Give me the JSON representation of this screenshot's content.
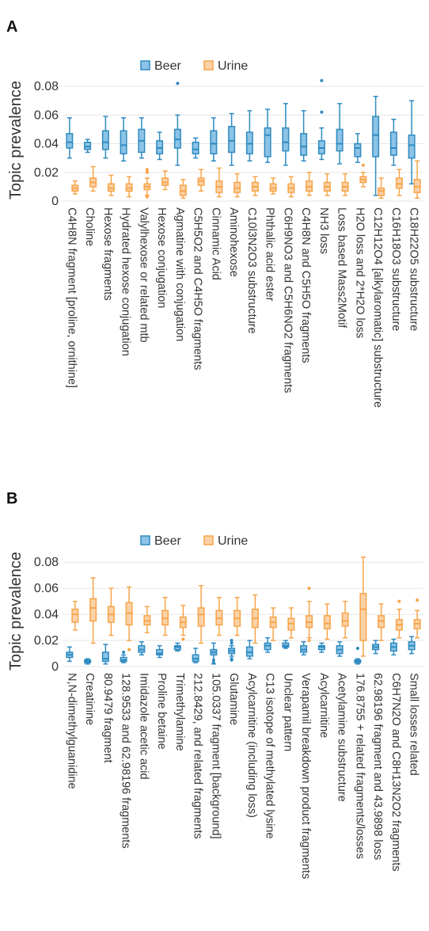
{
  "colors": {
    "beer": "#2e8bc0",
    "beer_fill": "#8cc3e6",
    "urine": "#f7a44a",
    "urine_fill": "#fbd2a6"
  },
  "chart_data": [
    {
      "panel": "A",
      "type": "box",
      "ylabel": "Topic prevalence",
      "ylim": [
        0,
        0.085
      ],
      "yticks": [
        0,
        0.02,
        0.04,
        0.06,
        0.08
      ],
      "ytick_labels": [
        "0",
        "0.02",
        "0.04",
        "0.06",
        "0.08"
      ],
      "grid": true,
      "legend": [
        "Beer",
        "Urine"
      ],
      "legend_placement": "top-center",
      "categories": [
        "C4H8N fragment [proline, ornithine]",
        "Choline",
        "Hexose fragments",
        "Hydrated hexose conjugation",
        "Valylhexose or related mtb",
        "Hexose conjugation",
        "Agmatine with conjugation",
        "C5H5O2 and C4H5O fragments",
        "Cinnamic Acid",
        "Aminohexose",
        "C10l3N2O3 substructure",
        "Phthalic acid ester",
        "C6H9NO3 and C5H6NO2 fragments",
        "C4H8N and C5H5O fragments",
        "NH3 loss",
        "Loss based Mass2Motif",
        "H2O loss and 2*H2O loss",
        "C12H12O4 [alkylaromatic] substructure",
        "C16H18O3 substructure",
        "C18H22O5 substructure"
      ],
      "series": [
        {
          "name": "Beer",
          "boxes": [
            {
              "min": 0.03,
              "q1": 0.037,
              "median": 0.041,
              "q3": 0.047,
              "max": 0.058,
              "outliers": []
            },
            {
              "min": 0.034,
              "q1": 0.036,
              "median": 0.038,
              "q3": 0.041,
              "max": 0.043,
              "outliers": []
            },
            {
              "min": 0.03,
              "q1": 0.036,
              "median": 0.041,
              "q3": 0.049,
              "max": 0.059,
              "outliers": []
            },
            {
              "min": 0.028,
              "q1": 0.033,
              "median": 0.039,
              "q3": 0.049,
              "max": 0.058,
              "outliers": []
            },
            {
              "min": 0.03,
              "q1": 0.034,
              "median": 0.042,
              "q3": 0.05,
              "max": 0.058,
              "outliers": []
            },
            {
              "min": 0.029,
              "q1": 0.033,
              "median": 0.037,
              "q3": 0.042,
              "max": 0.048,
              "outliers": []
            },
            {
              "min": 0.025,
              "q1": 0.037,
              "median": 0.043,
              "q3": 0.05,
              "max": 0.06,
              "outliers": [
                0.082
              ]
            },
            {
              "min": 0.03,
              "q1": 0.033,
              "median": 0.036,
              "q3": 0.041,
              "max": 0.044,
              "outliers": []
            },
            {
              "min": 0.028,
              "q1": 0.033,
              "median": 0.04,
              "q3": 0.049,
              "max": 0.058,
              "outliers": []
            },
            {
              "min": 0.025,
              "q1": 0.034,
              "median": 0.042,
              "q3": 0.052,
              "max": 0.061,
              "outliers": []
            },
            {
              "min": 0.028,
              "q1": 0.033,
              "median": 0.04,
              "q3": 0.048,
              "max": 0.063,
              "outliers": []
            },
            {
              "min": 0.027,
              "q1": 0.031,
              "median": 0.046,
              "q3": 0.051,
              "max": 0.064,
              "outliers": []
            },
            {
              "min": 0.025,
              "q1": 0.035,
              "median": 0.041,
              "q3": 0.051,
              "max": 0.068,
              "outliers": []
            },
            {
              "min": 0.028,
              "q1": 0.032,
              "median": 0.038,
              "q3": 0.047,
              "max": 0.063,
              "outliers": []
            },
            {
              "min": 0.029,
              "q1": 0.033,
              "median": 0.037,
              "q3": 0.042,
              "max": 0.051,
              "outliers": [
                0.062,
                0.084
              ]
            },
            {
              "min": 0.026,
              "q1": 0.035,
              "median": 0.04,
              "q3": 0.05,
              "max": 0.068,
              "outliers": []
            },
            {
              "min": 0.027,
              "q1": 0.031,
              "median": 0.037,
              "q3": 0.04,
              "max": 0.047,
              "outliers": []
            },
            {
              "min": 0.004,
              "q1": 0.031,
              "median": 0.046,
              "q3": 0.059,
              "max": 0.073,
              "outliers": []
            },
            {
              "min": 0.025,
              "q1": 0.032,
              "median": 0.037,
              "q3": 0.048,
              "max": 0.057,
              "outliers": []
            },
            {
              "min": 0.012,
              "q1": 0.03,
              "median": 0.039,
              "q3": 0.046,
              "max": 0.07,
              "outliers": []
            }
          ]
        },
        {
          "name": "Urine",
          "boxes": [
            {
              "min": 0.005,
              "q1": 0.007,
              "median": 0.009,
              "q3": 0.011,
              "max": 0.014,
              "outliers": []
            },
            {
              "min": 0.007,
              "q1": 0.01,
              "median": 0.013,
              "q3": 0.016,
              "max": 0.024,
              "outliers": []
            },
            {
              "min": 0.004,
              "q1": 0.007,
              "median": 0.009,
              "q3": 0.012,
              "max": 0.018,
              "outliers": []
            },
            {
              "min": 0.003,
              "q1": 0.007,
              "median": 0.009,
              "q3": 0.012,
              "max": 0.017,
              "outliers": []
            },
            {
              "min": 0.004,
              "q1": 0.008,
              "median": 0.01,
              "q3": 0.012,
              "max": 0.016,
              "outliers": [
                0.003,
                0.02,
                0.022
              ]
            },
            {
              "min": 0.008,
              "q1": 0.011,
              "median": 0.013,
              "q3": 0.016,
              "max": 0.021,
              "outliers": []
            },
            {
              "min": 0.002,
              "q1": 0.004,
              "median": 0.007,
              "q3": 0.011,
              "max": 0.015,
              "outliers": []
            },
            {
              "min": 0.007,
              "q1": 0.011,
              "median": 0.014,
              "q3": 0.016,
              "max": 0.022,
              "outliers": []
            },
            {
              "min": 0.003,
              "q1": 0.006,
              "median": 0.01,
              "q3": 0.014,
              "max": 0.023,
              "outliers": []
            },
            {
              "min": 0.003,
              "q1": 0.006,
              "median": 0.009,
              "q3": 0.013,
              "max": 0.019,
              "outliers": []
            },
            {
              "min": 0.004,
              "q1": 0.007,
              "median": 0.01,
              "q3": 0.013,
              "max": 0.017,
              "outliers": []
            },
            {
              "min": 0.005,
              "q1": 0.007,
              "median": 0.009,
              "q3": 0.012,
              "max": 0.016,
              "outliers": []
            },
            {
              "min": 0.003,
              "q1": 0.006,
              "median": 0.009,
              "q3": 0.012,
              "max": 0.017,
              "outliers": []
            },
            {
              "min": 0.004,
              "q1": 0.007,
              "median": 0.01,
              "q3": 0.014,
              "max": 0.02,
              "outliers": []
            },
            {
              "min": 0.004,
              "q1": 0.007,
              "median": 0.01,
              "q3": 0.013,
              "max": 0.019,
              "outliers": []
            },
            {
              "min": 0.004,
              "q1": 0.007,
              "median": 0.01,
              "q3": 0.013,
              "max": 0.019,
              "outliers": []
            },
            {
              "min": 0.01,
              "q1": 0.013,
              "median": 0.015,
              "q3": 0.017,
              "max": 0.02,
              "outliers": [
                0.025
              ]
            },
            {
              "min": 0.002,
              "q1": 0.004,
              "median": 0.007,
              "q3": 0.009,
              "max": 0.016,
              "outliers": []
            },
            {
              "min": 0.004,
              "q1": 0.009,
              "median": 0.012,
              "q3": 0.016,
              "max": 0.022,
              "outliers": []
            },
            {
              "min": 0.002,
              "q1": 0.006,
              "median": 0.01,
              "q3": 0.015,
              "max": 0.028,
              "outliers": []
            }
          ]
        }
      ]
    },
    {
      "panel": "B",
      "type": "box",
      "ylabel": "Topic prevalence",
      "ylim": [
        0,
        0.085
      ],
      "yticks": [
        0,
        0.02,
        0.04,
        0.06,
        0.08
      ],
      "ytick_labels": [
        "0",
        "0.02",
        "0.04",
        "0.06",
        "0.08"
      ],
      "grid": true,
      "legend": [
        "Beer",
        "Urine"
      ],
      "legend_placement": "top-center",
      "categories": [
        "N,N-dimethylguanidine",
        "Creatinine",
        "80.9479 fragment",
        "128.9533 and 62.98196 fragments",
        "Imidazole acetic acid",
        "Proline betaine",
        "Trimethylamine",
        "212.8429, and related fragments",
        "105.0337 fragment [background]",
        "Glutamine",
        "Acylcarnitine (including loss)",
        "C13 isotope of methylated lysine",
        "Unclear pattern",
        "Verapamil breakdown product fragments",
        "Acylcarnitine",
        "Acetylamine substructure",
        "176.8755 + related fragments/losses",
        "62.98196 fragment and 43.9898 loss",
        "C6H7N2O and C8H13N2O2 fragments",
        "Small losses related"
      ],
      "series": [
        {
          "name": "Beer",
          "boxes": [
            {
              "min": 0.004,
              "q1": 0.007,
              "median": 0.009,
              "q3": 0.011,
              "max": 0.015,
              "outliers": []
            },
            {
              "min": 0.002,
              "q1": 0.003,
              "median": 0.004,
              "q3": 0.005,
              "max": 0.006,
              "outliers": []
            },
            {
              "min": 0.002,
              "q1": 0.004,
              "median": 0.006,
              "q3": 0.011,
              "max": 0.017,
              "outliers": []
            },
            {
              "min": 0.003,
              "q1": 0.004,
              "median": 0.005,
              "q3": 0.007,
              "max": 0.009,
              "outliers": [
                0.011
              ]
            },
            {
              "min": 0.009,
              "q1": 0.011,
              "median": 0.013,
              "q3": 0.016,
              "max": 0.019,
              "outliers": []
            },
            {
              "min": 0.007,
              "q1": 0.009,
              "median": 0.01,
              "q3": 0.013,
              "max": 0.016,
              "outliers": []
            },
            {
              "min": 0.012,
              "q1": 0.013,
              "median": 0.015,
              "q3": 0.016,
              "max": 0.018,
              "outliers": []
            },
            {
              "min": 0.003,
              "q1": 0.004,
              "median": 0.006,
              "q3": 0.009,
              "max": 0.014,
              "outliers": []
            },
            {
              "min": 0.002,
              "q1": 0.009,
              "median": 0.011,
              "q3": 0.013,
              "max": 0.018,
              "outliers": [
                0.003,
                0.005
              ]
            },
            {
              "min": 0.008,
              "q1": 0.01,
              "median": 0.012,
              "q3": 0.014,
              "max": 0.016,
              "outliers": [
                0.005,
                0.006,
                0.018,
                0.02
              ]
            },
            {
              "min": 0.006,
              "q1": 0.008,
              "median": 0.011,
              "q3": 0.015,
              "max": 0.02,
              "outliers": []
            },
            {
              "min": 0.011,
              "q1": 0.013,
              "median": 0.016,
              "q3": 0.018,
              "max": 0.022,
              "outliers": []
            },
            {
              "min": 0.014,
              "q1": 0.015,
              "median": 0.016,
              "q3": 0.018,
              "max": 0.02,
              "outliers": []
            },
            {
              "min": 0.009,
              "q1": 0.011,
              "median": 0.013,
              "q3": 0.016,
              "max": 0.019,
              "outliers": []
            },
            {
              "min": 0.011,
              "q1": 0.013,
              "median": 0.015,
              "q3": 0.016,
              "max": 0.018,
              "outliers": []
            },
            {
              "min": 0.008,
              "q1": 0.01,
              "median": 0.013,
              "q3": 0.016,
              "max": 0.019,
              "outliers": []
            },
            {
              "min": 0.002,
              "q1": 0.003,
              "median": 0.004,
              "q3": 0.005,
              "max": 0.006,
              "outliers": [
                0.014
              ]
            },
            {
              "min": 0.01,
              "q1": 0.013,
              "median": 0.015,
              "q3": 0.017,
              "max": 0.02,
              "outliers": []
            },
            {
              "min": 0.009,
              "q1": 0.012,
              "median": 0.015,
              "q3": 0.018,
              "max": 0.021,
              "outliers": []
            },
            {
              "min": 0.01,
              "q1": 0.013,
              "median": 0.016,
              "q3": 0.019,
              "max": 0.023,
              "outliers": []
            }
          ]
        },
        {
          "name": "Urine",
          "boxes": [
            {
              "min": 0.028,
              "q1": 0.034,
              "median": 0.04,
              "q3": 0.044,
              "max": 0.05,
              "outliers": []
            },
            {
              "min": 0.018,
              "q1": 0.035,
              "median": 0.045,
              "q3": 0.052,
              "max": 0.068,
              "outliers": []
            },
            {
              "min": 0.024,
              "q1": 0.034,
              "median": 0.04,
              "q3": 0.046,
              "max": 0.06,
              "outliers": []
            },
            {
              "min": 0.02,
              "q1": 0.032,
              "median": 0.041,
              "q3": 0.049,
              "max": 0.061,
              "outliers": [
                0.013
              ]
            },
            {
              "min": 0.026,
              "q1": 0.032,
              "median": 0.035,
              "q3": 0.039,
              "max": 0.046,
              "outliers": []
            },
            {
              "min": 0.024,
              "q1": 0.032,
              "median": 0.037,
              "q3": 0.043,
              "max": 0.053,
              "outliers": []
            },
            {
              "min": 0.024,
              "q1": 0.03,
              "median": 0.034,
              "q3": 0.038,
              "max": 0.047,
              "outliers": [
                0.021
              ]
            },
            {
              "min": 0.018,
              "q1": 0.031,
              "median": 0.04,
              "q3": 0.045,
              "max": 0.062,
              "outliers": []
            },
            {
              "min": 0.024,
              "q1": 0.032,
              "median": 0.037,
              "q3": 0.043,
              "max": 0.053,
              "outliers": []
            },
            {
              "min": 0.024,
              "q1": 0.031,
              "median": 0.037,
              "q3": 0.043,
              "max": 0.053,
              "outliers": []
            },
            {
              "min": 0.018,
              "q1": 0.03,
              "median": 0.037,
              "q3": 0.044,
              "max": 0.055,
              "outliers": []
            },
            {
              "min": 0.02,
              "q1": 0.03,
              "median": 0.034,
              "q3": 0.038,
              "max": 0.045,
              "outliers": []
            },
            {
              "min": 0.022,
              "q1": 0.028,
              "median": 0.033,
              "q3": 0.037,
              "max": 0.045,
              "outliers": []
            },
            {
              "min": 0.022,
              "q1": 0.03,
              "median": 0.034,
              "q3": 0.039,
              "max": 0.05,
              "outliers": [
                0.02,
                0.06
              ]
            },
            {
              "min": 0.021,
              "q1": 0.029,
              "median": 0.033,
              "q3": 0.039,
              "max": 0.048,
              "outliers": []
            },
            {
              "min": 0.022,
              "q1": 0.031,
              "median": 0.035,
              "q3": 0.041,
              "max": 0.05,
              "outliers": []
            },
            {
              "min": 0.008,
              "q1": 0.02,
              "median": 0.044,
              "q3": 0.056,
              "max": 0.084,
              "outliers": []
            },
            {
              "min": 0.02,
              "q1": 0.03,
              "median": 0.035,
              "q3": 0.039,
              "max": 0.048,
              "outliers": []
            },
            {
              "min": 0.022,
              "q1": 0.028,
              "median": 0.032,
              "q3": 0.036,
              "max": 0.044,
              "outliers": [
                0.05
              ]
            },
            {
              "min": 0.022,
              "q1": 0.029,
              "median": 0.033,
              "q3": 0.036,
              "max": 0.043,
              "outliers": [
                0.051
              ]
            }
          ]
        }
      ]
    }
  ]
}
